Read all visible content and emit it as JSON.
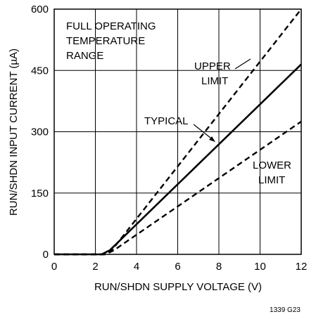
{
  "chart_data": {
    "type": "line",
    "xlabel": "RUN/SHDN SUPPLY VOLTAGE (V)",
    "ylabel": "RUN/SHDN INPUT CURRENT (µA)",
    "xlim": [
      0,
      12
    ],
    "ylim": [
      0,
      600
    ],
    "x_ticks": [
      "0",
      "2",
      "4",
      "6",
      "8",
      "10",
      "12"
    ],
    "y_ticks": [
      "0",
      "150",
      "300",
      "450",
      "600"
    ],
    "grid": true,
    "series": [
      {
        "name": "UPPER LIMIT",
        "style": "dashed",
        "x": [
          0,
          2.4,
          2.8,
          12
        ],
        "y": [
          0,
          0,
          10,
          600
        ]
      },
      {
        "name": "TYPICAL",
        "style": "solid",
        "x": [
          0,
          2.3,
          2.7,
          12
        ],
        "y": [
          0,
          0,
          10,
          465
        ]
      },
      {
        "name": "LOWER LIMIT",
        "style": "dashed",
        "x": [
          0,
          2.5,
          2.9,
          12
        ],
        "y": [
          0,
          0,
          10,
          325
        ]
      }
    ],
    "annotations": {
      "condition": [
        "FULL OPERATING",
        "TEMPERATURE",
        "RANGE"
      ],
      "upper": [
        "UPPER",
        "LIMIT"
      ],
      "typical": [
        "TYPICAL"
      ],
      "lower": [
        "LOWER",
        "LIMIT"
      ]
    },
    "figure_id": "1339 G23"
  }
}
